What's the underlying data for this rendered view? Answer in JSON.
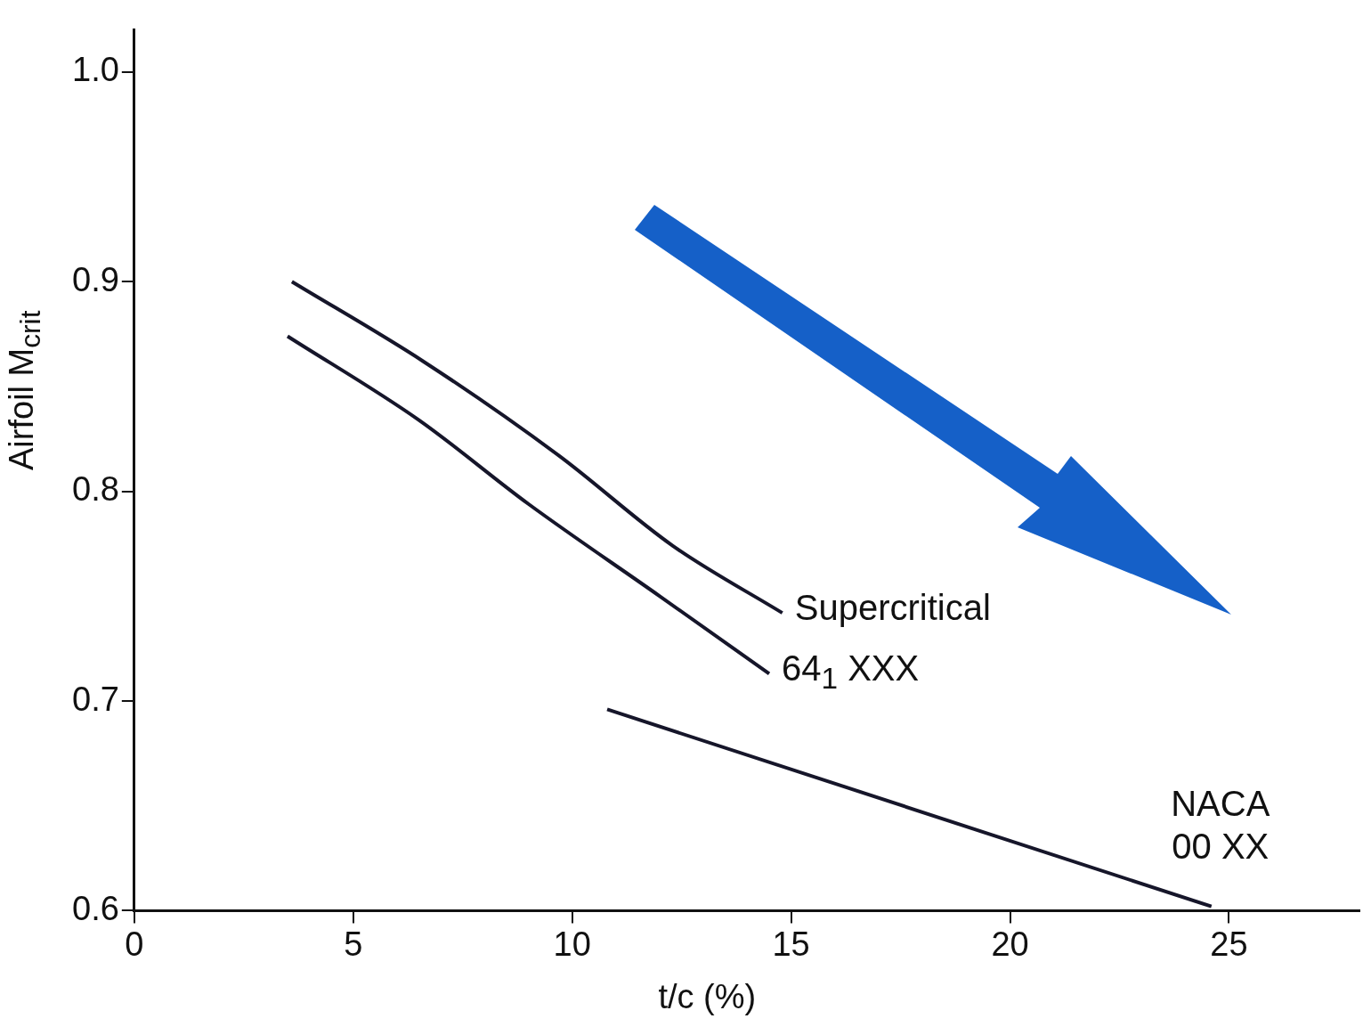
{
  "chart_data": {
    "type": "line",
    "xlabel": "t/c (%)",
    "ylabel": "Airfoil M$_{crit}$",
    "xlim": [
      0,
      28
    ],
    "xticks": [
      0,
      5,
      10,
      15,
      20,
      25
    ],
    "ylim": [
      0.6,
      1.02
    ],
    "yticks": [
      0.6,
      0.7,
      0.8,
      0.9,
      {
        "value": 1,
        "label": "1.0"
      }
    ],
    "series": [
      {
        "name": "Supercritical",
        "color": "#16162a",
        "x": [
          3.6,
          6.6,
          9.7,
          12.3,
          14.8
        ],
        "values": [
          0.9,
          0.862,
          0.817,
          0.774,
          0.742
        ]
      },
      {
        "name": "64$_{1}$ XXX",
        "color": "#16162a",
        "x": [
          3.5,
          6.5,
          9,
          12,
          14.5
        ],
        "values": [
          0.874,
          0.834,
          0.794,
          0.75,
          0.713
        ]
      },
      {
        "name": "NACA 00 XX",
        "color": "#16162a",
        "x": [
          10.8,
          24.6
        ],
        "values": [
          0.696,
          0.602
        ]
      }
    ]
  }
}
